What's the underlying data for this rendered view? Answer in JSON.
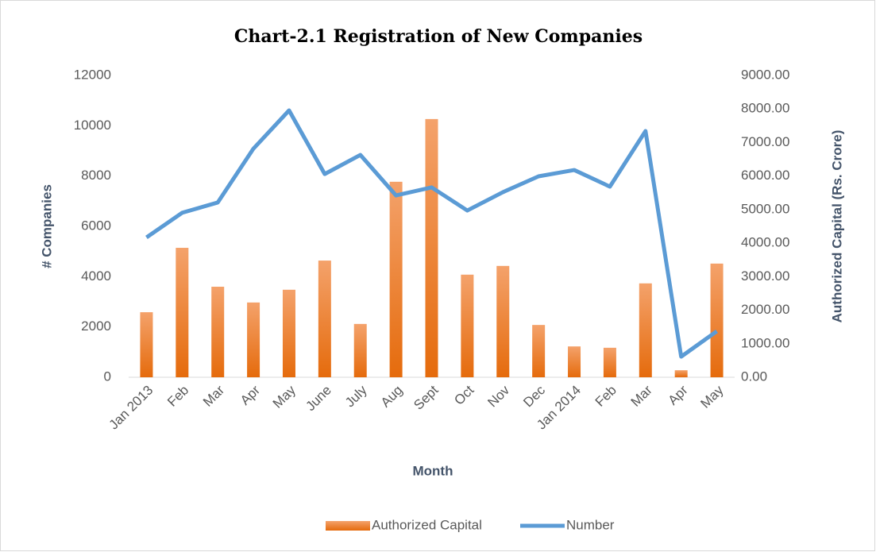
{
  "chart_data": {
    "type": "bar_line",
    "title": "Chart-2.1 Registration of New Companies",
    "x_label": "Month",
    "y_label": "# Companies",
    "y2_label": "Authorized Capital (Rs. Crore)",
    "categories": [
      "Jan 2013",
      "Feb",
      "Mar",
      "Apr",
      "May",
      "June",
      "July",
      "Aug",
      "Sept",
      "Oct",
      "Nov",
      "Dec",
      "Jan 2014",
      "Feb",
      "Mar",
      "Apr",
      "May"
    ],
    "series": [
      {
        "name": "Authorized Capital",
        "type": "bar",
        "axis": "y2",
        "color": "#ed7d31",
        "values": [
          1940,
          3860,
          2700,
          2230,
          2610,
          3480,
          1590,
          5830,
          7700,
          3060,
          3320,
          1560,
          920,
          880,
          2800,
          210,
          3390
        ]
      },
      {
        "name": "Number",
        "type": "line",
        "axis": "y",
        "color": "#5b9bd5",
        "values": [
          5560,
          6540,
          6950,
          9090,
          10610,
          8080,
          8840,
          7230,
          7550,
          6630,
          7360,
          7990,
          8240,
          7580,
          9790,
          820,
          1830
        ]
      }
    ],
    "ylim": [
      0,
      12000
    ],
    "yticks": [
      0,
      2000,
      4000,
      6000,
      8000,
      10000,
      12000
    ],
    "y2lim": [
      0,
      9000
    ],
    "y2ticks": [
      {
        "value": 0,
        "label": "0.00"
      },
      {
        "value": 1000,
        "label": "1000.00"
      },
      {
        "value": 2000,
        "label": "2000.00"
      },
      {
        "value": 3000,
        "label": "3000.00"
      },
      {
        "value": 4000,
        "label": "4000.00"
      },
      {
        "value": 5000,
        "label": "5000.00"
      },
      {
        "value": 6000,
        "label": "6000.00"
      },
      {
        "value": 7000,
        "label": "7000.00"
      },
      {
        "value": 8000,
        "label": "8000.00"
      },
      {
        "value": 9000,
        "label": "9000.00"
      }
    ],
    "grid": false,
    "legend": "bottom"
  }
}
